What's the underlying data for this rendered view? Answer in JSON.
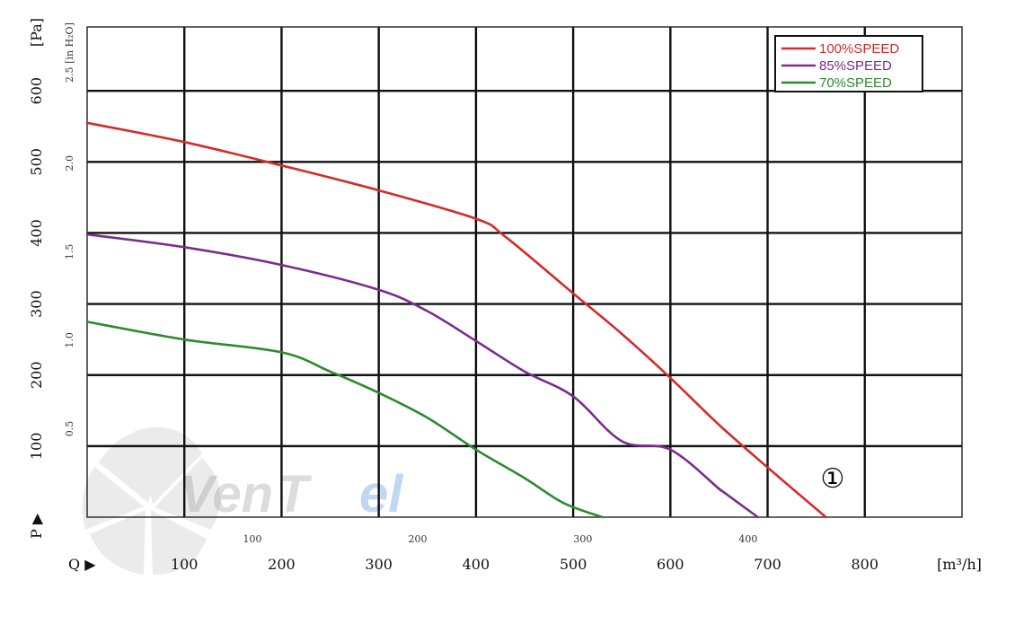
{
  "chart_data": {
    "type": "line",
    "x_unit": "[m³/h]",
    "y_unit": "[Pa]",
    "y2_unit": "[in H₂O]",
    "x_axis_marker": "Q ▶",
    "y_axis_marker": "P ▶",
    "xlim": [
      0,
      900
    ],
    "ylim": [
      0,
      690
    ],
    "x_ticks": [
      "100",
      "200",
      "300",
      "400",
      "500",
      "600",
      "700",
      "800"
    ],
    "x2_ticks": [
      "100",
      "200",
      "300",
      "400"
    ],
    "y_ticks": [
      "100",
      "200",
      "300",
      "400",
      "500",
      "600"
    ],
    "y2_ticks": [
      "0.5",
      "1.0",
      "1.5",
      "2.0",
      "2.5"
    ],
    "legend_position": "top-right",
    "annotation": "①",
    "watermark": "VenTel",
    "series": [
      {
        "name": "100%SPEED",
        "color": "#d42b2b",
        "x": [
          0,
          100,
          200,
          300,
          400,
          430,
          500,
          550,
          600,
          650,
          700,
          760
        ],
        "y": [
          555,
          528,
          495,
          460,
          420,
          395,
          315,
          258,
          196,
          130,
          70,
          0
        ]
      },
      {
        "name": "85%SPEED",
        "color": "#7a2d8c",
        "x": [
          0,
          100,
          200,
          300,
          350,
          400,
          450,
          500,
          550,
          600,
          650,
          650,
          690
        ],
        "y": [
          398,
          380,
          355,
          320,
          290,
          248,
          205,
          170,
          107,
          95,
          40,
          40,
          0
        ]
      },
      {
        "name": "70%SPEED",
        "color": "#2d8a2d",
        "x": [
          0,
          100,
          200,
          250,
          300,
          350,
          400,
          450,
          490,
          530
        ],
        "y": [
          275,
          250,
          232,
          205,
          175,
          140,
          95,
          55,
          20,
          0
        ]
      }
    ]
  }
}
